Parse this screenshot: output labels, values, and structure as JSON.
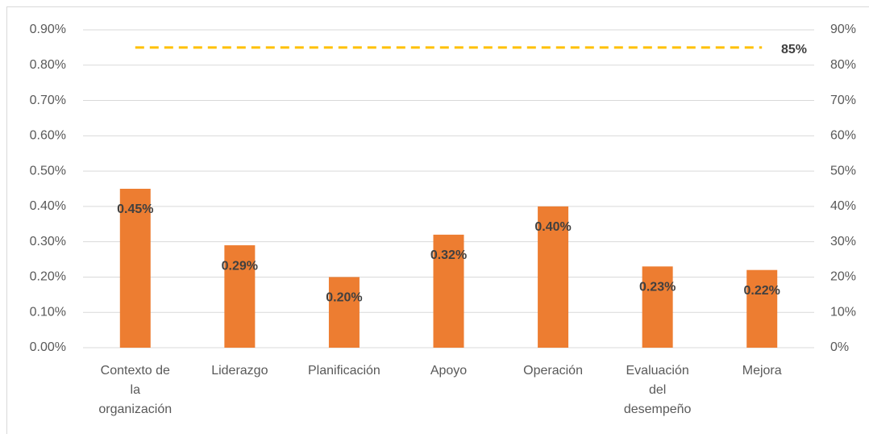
{
  "chart_data": {
    "type": "bar",
    "categories": [
      "Contexto de la organización",
      "Liderazgo",
      "Planificación",
      "Apoyo",
      "Operación",
      "Evaluación del desempeño",
      "Mejora"
    ],
    "values": [
      0.45,
      0.29,
      0.2,
      0.32,
      0.4,
      0.23,
      0.22
    ],
    "value_labels": [
      "0.45%",
      "0.29%",
      "0.20%",
      "0.32%",
      "0.40%",
      "0.23%",
      "0.22%"
    ],
    "color": "#ed7d31",
    "ylim": [
      0,
      0.9
    ],
    "yticks": [
      {
        "value": 0,
        "label": "0.00%"
      },
      {
        "value": 0.1,
        "label": "0.10%"
      },
      {
        "value": 0.2,
        "label": "0.20%"
      },
      {
        "value": 0.3,
        "label": "0.30%"
      },
      {
        "value": 0.4,
        "label": "0.40%"
      },
      {
        "value": 0.5,
        "label": "0.50%"
      },
      {
        "value": 0.6,
        "label": "0.60%"
      },
      {
        "value": 0.7,
        "label": "0.70%"
      },
      {
        "value": 0.8,
        "label": "0.80%"
      },
      {
        "value": 0.9,
        "label": "0.90%"
      }
    ],
    "y2lim": [
      0,
      90
    ],
    "y2ticks": [
      {
        "value": 0,
        "label": "0%"
      },
      {
        "value": 10,
        "label": "10%"
      },
      {
        "value": 20,
        "label": "20%"
      },
      {
        "value": 30,
        "label": "30%"
      },
      {
        "value": 40,
        "label": "40%"
      },
      {
        "value": 50,
        "label": "50%"
      },
      {
        "value": 60,
        "label": "60%"
      },
      {
        "value": 70,
        "label": "70%"
      },
      {
        "value": 80,
        "label": "80%"
      },
      {
        "value": 90,
        "label": "90%"
      }
    ],
    "reference_line": {
      "value": 85,
      "label": "85%",
      "axis": "y2",
      "color": "#ffc000"
    },
    "grid": true
  }
}
